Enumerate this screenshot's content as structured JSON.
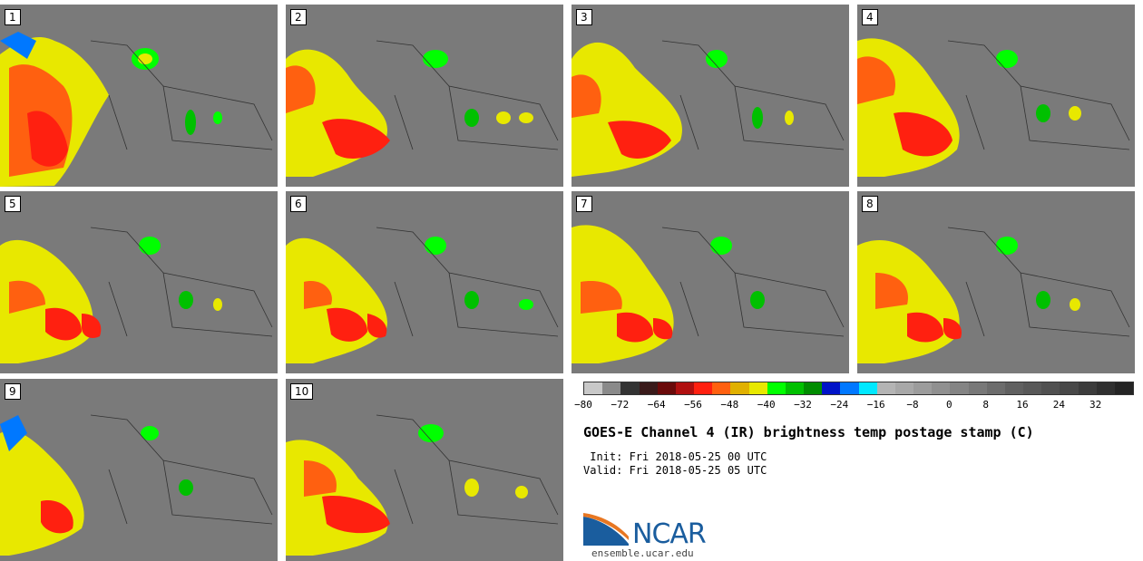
{
  "panels": [
    {
      "label": "1"
    },
    {
      "label": "2"
    },
    {
      "label": "3"
    },
    {
      "label": "4"
    },
    {
      "label": "5"
    },
    {
      "label": "6"
    },
    {
      "label": "7"
    },
    {
      "label": "8"
    },
    {
      "label": "9"
    },
    {
      "label": "10"
    }
  ],
  "colorbar": {
    "colors": [
      "#c8c8c8",
      "#8a8a8a",
      "#333333",
      "#3a1a1a",
      "#6a0a0a",
      "#b01010",
      "#ff2010",
      "#ff6010",
      "#e0b000",
      "#e8e800",
      "#00ff00",
      "#00c000",
      "#008c00",
      "#0014c8",
      "#0078ff",
      "#00e8ff",
      "#b4b4b4",
      "#a8a8a8",
      "#9c9c9c",
      "#909090",
      "#848484",
      "#787878",
      "#6c6c6c",
      "#606060",
      "#585858",
      "#505050",
      "#484848",
      "#3c3c3c",
      "#303030",
      "#242424"
    ],
    "tick_labels": [
      "−80",
      "−72",
      "−64",
      "−56",
      "−48",
      "−40",
      "−32",
      "−24",
      "−16",
      "−8",
      "0",
      "8",
      "16",
      "24",
      "32"
    ]
  },
  "title": "GOES-E Channel 4 (IR) brightness temp postage stamp (C)",
  "init": " Init: Fri 2018-05-25 00 UTC",
  "valid": "Valid: Fri 2018-05-25 05 UTC",
  "logo": {
    "text": "NCAR",
    "url": "ensemble.ucar.edu"
  }
}
